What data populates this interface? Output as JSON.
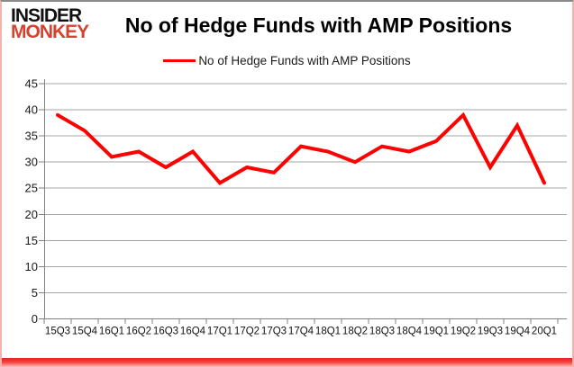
{
  "logo": {
    "line1": "INSIDER",
    "line2": "MONKEY"
  },
  "title": "No of Hedge Funds with AMP Positions",
  "legend": {
    "label": "No of Hedge Funds with AMP Positions"
  },
  "colors": {
    "line": "#fe0000",
    "logo_red": "#d8402f",
    "grid": "#a6a6a6",
    "axis": "#808080",
    "bottom_bar": "#e6211c"
  },
  "chart_data": {
    "type": "line",
    "title": "No of Hedge Funds with AMP Positions",
    "series_name": "No of Hedge Funds with AMP Positions",
    "categories": [
      "15Q3",
      "15Q4",
      "16Q1",
      "16Q2",
      "16Q3",
      "16Q4",
      "17Q1",
      "17Q2",
      "17Q3",
      "17Q4",
      "18Q1",
      "18Q2",
      "18Q3",
      "18Q4",
      "19Q1",
      "19Q2",
      "19Q3",
      "19Q4",
      "20Q1"
    ],
    "values": [
      39,
      36,
      31,
      32,
      29,
      32,
      26,
      29,
      28,
      33,
      32,
      30,
      33,
      32,
      34,
      39,
      29,
      37,
      26
    ],
    "xlabel": "",
    "ylabel": "",
    "ylim": [
      0,
      45
    ],
    "yticks": [
      0,
      5,
      10,
      15,
      20,
      25,
      30,
      35,
      40,
      45
    ],
    "grid": true,
    "legend_position": "top-center",
    "line_color": "#fe0000"
  }
}
